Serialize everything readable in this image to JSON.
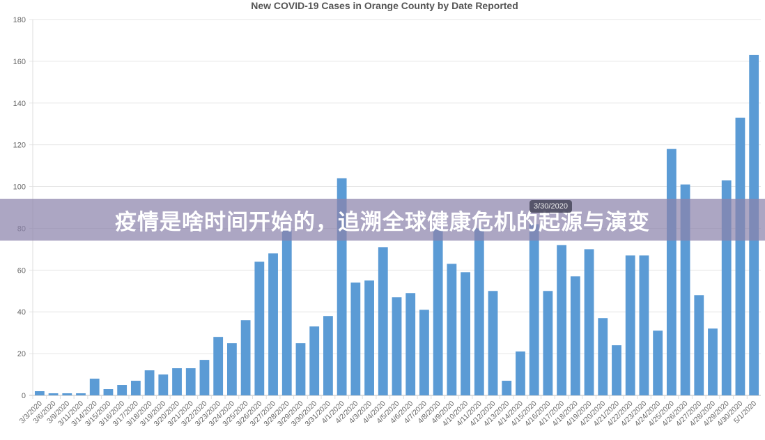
{
  "chart_data": {
    "type": "bar",
    "title": "New COVID-19 Cases in Orange County by Date Reported",
    "xlabel": "",
    "ylabel": "",
    "ylim": [
      0,
      180
    ],
    "yticks": [
      0,
      20,
      40,
      60,
      80,
      100,
      120,
      140,
      160,
      180
    ],
    "grid": true,
    "bar_color": "#5b9bd5",
    "categories": [
      "3/3/2020",
      "3/6/2020",
      "3/9/2020",
      "3/11/2020",
      "3/14/2020",
      "3/15/2020",
      "3/16/2020",
      "3/17/2020",
      "3/18/2020",
      "3/19/2020",
      "3/20/2020",
      "3/21/2020",
      "3/22/2020",
      "3/23/2020",
      "3/24/2020",
      "3/25/2020",
      "3/26/2020",
      "3/27/2020",
      "3/28/2020",
      "3/29/2020",
      "3/30/2020",
      "3/31/2020",
      "4/1/2020",
      "4/2/2020",
      "4/3/2020",
      "4/4/2020",
      "4/5/2020",
      "4/6/2020",
      "4/7/2020",
      "4/8/2020",
      "4/9/2020",
      "4/10/2020",
      "4/11/2020",
      "4/12/2020",
      "4/13/2020",
      "4/14/2020",
      "4/15/2020",
      "4/16/2020",
      "4/17/2020",
      "4/18/2020",
      "4/19/2020",
      "4/20/2020",
      "4/21/2020",
      "4/22/2020",
      "4/23/2020",
      "4/24/2020",
      "4/25/2020",
      "4/26/2020",
      "4/27/2020",
      "4/28/2020",
      "4/29/2020",
      "4/30/2020",
      "5/1/2020"
    ],
    "values": [
      2,
      1,
      1,
      1,
      8,
      3,
      5,
      7,
      12,
      10,
      13,
      13,
      17,
      28,
      25,
      36,
      64,
      68,
      79,
      25,
      33,
      38,
      104,
      54,
      55,
      71,
      47,
      49,
      41,
      80,
      63,
      59,
      80,
      50,
      7,
      21,
      82,
      50,
      72,
      57,
      70,
      37,
      24,
      67,
      67,
      31,
      118,
      101,
      48,
      32,
      103,
      133,
      163
    ]
  },
  "tooltip": "3/30/2020",
  "banner": "疫情是啥时间开始的，追溯全球健康危机的起源与演变"
}
